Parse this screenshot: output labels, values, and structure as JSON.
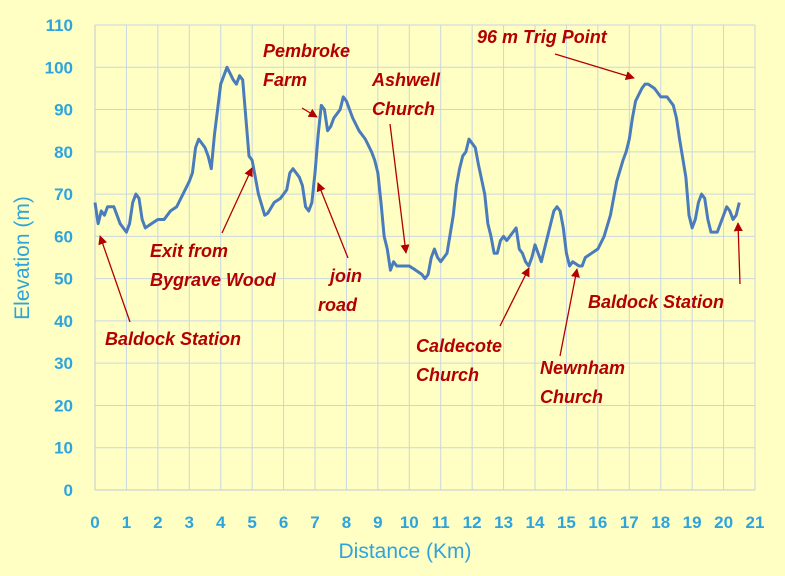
{
  "chart_data": {
    "type": "line",
    "xlabel": "Distance (Km)",
    "ylabel": "Elevation (m)",
    "xlim": [
      0,
      21
    ],
    "ylim": [
      0,
      110
    ],
    "xticks": [
      0,
      1,
      2,
      3,
      4,
      5,
      6,
      7,
      8,
      9,
      10,
      11,
      12,
      13,
      14,
      15,
      16,
      17,
      18,
      19,
      20,
      21
    ],
    "yticks": [
      0,
      10,
      20,
      30,
      40,
      50,
      60,
      70,
      80,
      90,
      100,
      110
    ],
    "grid": true,
    "series": [
      {
        "color": "#4a7bbb",
        "x": [
          0,
          0.1,
          0.2,
          0.3,
          0.4,
          0.6,
          0.8,
          1.0,
          1.1,
          1.2,
          1.3,
          1.4,
          1.5,
          1.6,
          1.8,
          2.0,
          2.2,
          2.4,
          2.6,
          2.8,
          3.0,
          3.1,
          3.2,
          3.3,
          3.5,
          3.6,
          3.7,
          3.8,
          3.9,
          4.0,
          4.2,
          4.4,
          4.5,
          4.6,
          4.7,
          4.8,
          4.9,
          5.0,
          5.1,
          5.2,
          5.4,
          5.5,
          5.7,
          5.9,
          6.0,
          6.1,
          6.2,
          6.3,
          6.4,
          6.5,
          6.6,
          6.7,
          6.8,
          6.9,
          7.0,
          7.1,
          7.2,
          7.3,
          7.4,
          7.5,
          7.6,
          7.8,
          7.9,
          8.0,
          8.2,
          8.4,
          8.6,
          8.8,
          8.9,
          9.0,
          9.1,
          9.2,
          9.3,
          9.4,
          9.5,
          9.6,
          9.8,
          10.0,
          10.2,
          10.4,
          10.5,
          10.6,
          10.7,
          10.8,
          10.9,
          11.0,
          11.2,
          11.4,
          11.5,
          11.6,
          11.7,
          11.8,
          11.9,
          12.1,
          12.2,
          12.4,
          12.5,
          12.6,
          12.7,
          12.8,
          12.9,
          13.0,
          13.1,
          13.3,
          13.4,
          13.5,
          13.6,
          13.7,
          13.8,
          13.9,
          14.0,
          14.1,
          14.2,
          14.3,
          14.4,
          14.5,
          14.6,
          14.7,
          14.8,
          14.9,
          15.0,
          15.1,
          15.2,
          15.4,
          15.5,
          15.6,
          15.8,
          16.0,
          16.2,
          16.4,
          16.6,
          16.8,
          16.9,
          17.0,
          17.1,
          17.2,
          17.4,
          17.5,
          17.6,
          17.8,
          18.0,
          18.2,
          18.4,
          18.5,
          18.6,
          18.8,
          18.9,
          19.0,
          19.1,
          19.2,
          19.3,
          19.4,
          19.5,
          19.6,
          19.8,
          20.0,
          20.1,
          20.2,
          20.3,
          20.4,
          20.5
        ],
        "values": [
          68,
          63,
          66,
          65,
          67,
          67,
          63,
          61,
          63,
          68,
          70,
          69,
          64,
          62,
          63,
          64,
          64,
          66,
          67,
          70,
          73,
          75,
          81,
          83,
          81,
          79,
          76,
          84,
          90,
          96,
          100,
          97,
          96,
          98,
          97,
          88,
          79,
          78,
          74,
          70,
          65,
          65.5,
          68,
          69,
          70,
          71,
          75,
          76,
          75,
          74,
          72,
          67,
          66,
          68,
          75,
          84,
          91,
          90,
          85,
          86,
          88,
          90,
          93,
          92,
          88,
          85,
          83,
          80,
          78,
          75,
          68,
          60,
          57,
          52,
          54,
          53,
          53,
          53,
          52,
          51,
          50,
          51,
          55,
          57,
          55,
          54,
          56,
          65,
          72,
          76,
          79,
          80,
          83,
          81,
          77,
          70,
          63,
          60,
          56,
          56,
          59,
          60,
          59,
          61,
          62,
          57,
          56,
          54,
          53,
          55,
          58,
          56,
          54,
          57,
          60,
          63,
          66,
          67,
          66,
          62,
          56,
          53,
          54,
          53,
          53,
          55,
          56,
          57,
          60,
          65,
          73,
          78,
          80,
          83,
          88,
          92,
          95,
          96,
          96,
          95,
          93,
          93,
          91,
          88,
          83,
          74,
          65,
          62,
          64,
          68,
          70,
          69,
          64,
          61,
          61,
          65,
          67,
          66,
          64,
          65,
          68
        ]
      }
    ],
    "annotations": [
      {
        "text": [
          "Baldock Station"
        ]
      },
      {
        "text": [
          "Exit from",
          "Bygrave Wood"
        ]
      },
      {
        "text": [
          "Pembroke",
          "Farm"
        ]
      },
      {
        "text": [
          "join",
          "road"
        ]
      },
      {
        "text": [
          "Ashwell",
          "Church"
        ]
      },
      {
        "text": [
          "Caldecote",
          "Church"
        ]
      },
      {
        "text": [
          "Newnham",
          "Church"
        ]
      },
      {
        "text": [
          "96 m Trig Point"
        ]
      },
      {
        "text": [
          "Baldock Station"
        ]
      }
    ]
  }
}
